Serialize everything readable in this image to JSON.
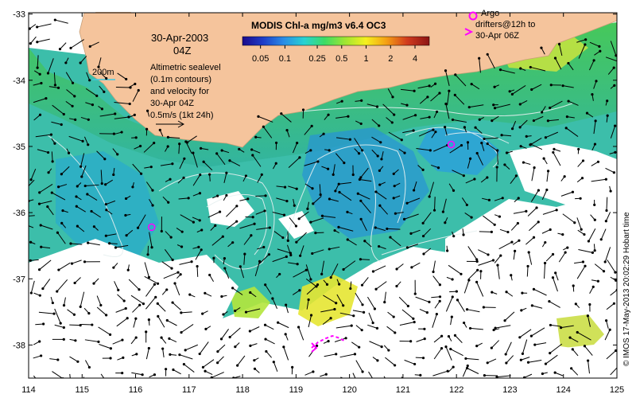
{
  "product_title": "MODIS Chl-a mg/m3 v6.4 OC3",
  "colorbar": {
    "tick_labels": [
      "0.05",
      "0.1",
      "0.25",
      "0.5",
      "1",
      "2",
      "4"
    ],
    "tick_values": [
      0.05,
      0.1,
      0.25,
      0.5,
      1,
      2,
      4
    ],
    "range": [
      0.03,
      6
    ],
    "scale": "log",
    "colors": [
      "#1a0a8c",
      "#1e3cc8",
      "#2a8ce6",
      "#28d2d2",
      "#3cdc64",
      "#a0e632",
      "#f5f01e",
      "#f5a014",
      "#d23c1e",
      "#8c1414"
    ]
  },
  "date": "30-Apr-2003",
  "time": "04Z",
  "legend_200m": "200m",
  "altimetry_note": [
    "Altimetric sealevel",
    "(0.1m contours)",
    "and velocity for",
    "30-Apr 04Z",
    "0.5m/s (1kt 24h)"
  ],
  "argo_legend": [
    "Argo",
    "drifters@12h to",
    "30-Apr 06Z"
  ],
  "credit": "© IMOS 17-May-2013 20:02:29 Hobart time",
  "axes": {
    "lon_ticks": [
      "114",
      "115",
      "116",
      "117",
      "118",
      "119",
      "120",
      "121",
      "122",
      "123",
      "124",
      "125"
    ],
    "lat_ticks": [
      "-33",
      "-34",
      "-35",
      "-36",
      "-37",
      "-38"
    ]
  },
  "colors": {
    "land": "#f5c49c",
    "argo": "#ff00ff",
    "contour": "#e6f0f0",
    "arrow": "#000000",
    "isobath": "#40c8e0"
  },
  "argo_floats": [
    {
      "lon": 121.9,
      "lat": -34.97
    },
    {
      "lon": 116.3,
      "lat": -36.22
    }
  ]
}
